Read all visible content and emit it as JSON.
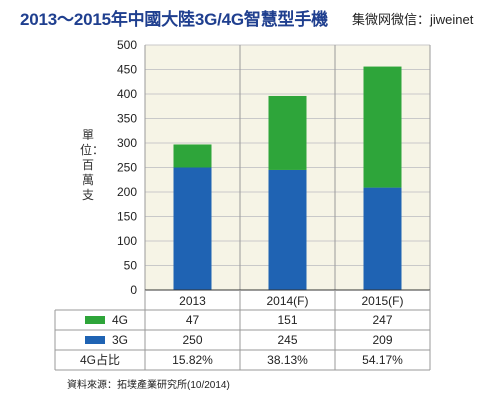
{
  "title": "2013～2015年中國大陸3G/4G智慧型手機",
  "watermark": "集微网微信：jiweinet",
  "source": "資料來源：拓墣產業研究所(10/2014)",
  "colors": {
    "g4": "#2ea53a",
    "g3": "#1f63b3",
    "grid": "#c9c9c9",
    "plot_bg": "#f6f4e6"
  },
  "chart_data": {
    "type": "bar",
    "stacked": true,
    "categories": [
      "2013",
      "2014(F)",
      "2015(F)"
    ],
    "ylabel": "單位：百萬支",
    "ylim": [
      0,
      500
    ],
    "yticks": [
      0,
      50,
      100,
      150,
      200,
      250,
      300,
      350,
      400,
      450,
      500
    ],
    "grid": true,
    "series": [
      {
        "name": "3G",
        "values": [
          250,
          245,
          209
        ],
        "color": "#1f63b3"
      },
      {
        "name": "4G",
        "values": [
          47,
          151,
          247
        ],
        "color": "#2ea53a"
      }
    ],
    "table": {
      "rows": [
        {
          "label": "4G",
          "series": 1,
          "values": [
            "47",
            "151",
            "247"
          ]
        },
        {
          "label": "3G",
          "series": 0,
          "values": [
            "250",
            "245",
            "209"
          ]
        },
        {
          "label": "4G占比",
          "series": null,
          "values": [
            "15.82%",
            "38.13%",
            "54.17%"
          ]
        }
      ]
    }
  }
}
